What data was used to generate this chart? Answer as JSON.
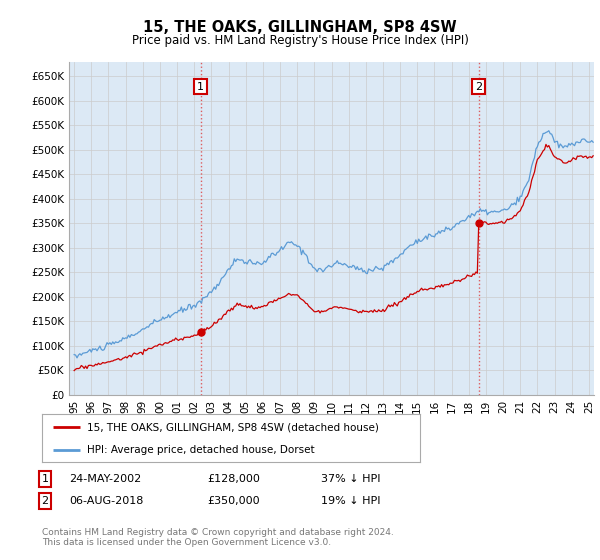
{
  "title": "15, THE OAKS, GILLINGHAM, SP8 4SW",
  "subtitle": "Price paid vs. HM Land Registry's House Price Index (HPI)",
  "legend_line1": "15, THE OAKS, GILLINGHAM, SP8 4SW (detached house)",
  "legend_line2": "HPI: Average price, detached house, Dorset",
  "footer": "Contains HM Land Registry data © Crown copyright and database right 2024.\nThis data is licensed under the Open Government Licence v3.0.",
  "red_color": "#cc0000",
  "blue_color": "#5b9bd5",
  "vline_color": "#dd4444",
  "grid_color": "#cccccc",
  "background_color": "#ffffff",
  "plot_bg_color": "#dce9f5",
  "annotation_box_color": "#cc0000",
  "ylim": [
    0,
    680000
  ],
  "yticks": [
    0,
    50000,
    100000,
    150000,
    200000,
    250000,
    300000,
    350000,
    400000,
    450000,
    500000,
    550000,
    600000,
    650000
  ],
  "ytick_labels": [
    "£0",
    "£50K",
    "£100K",
    "£150K",
    "£200K",
    "£250K",
    "£300K",
    "£350K",
    "£400K",
    "£450K",
    "£500K",
    "£550K",
    "£600K",
    "£650K"
  ],
  "sale1_x": 2002.38,
  "sale1_y": 128000,
  "sale2_x": 2018.58,
  "sale2_y": 350000,
  "xlim_left": 1994.7,
  "xlim_right": 2025.3
}
